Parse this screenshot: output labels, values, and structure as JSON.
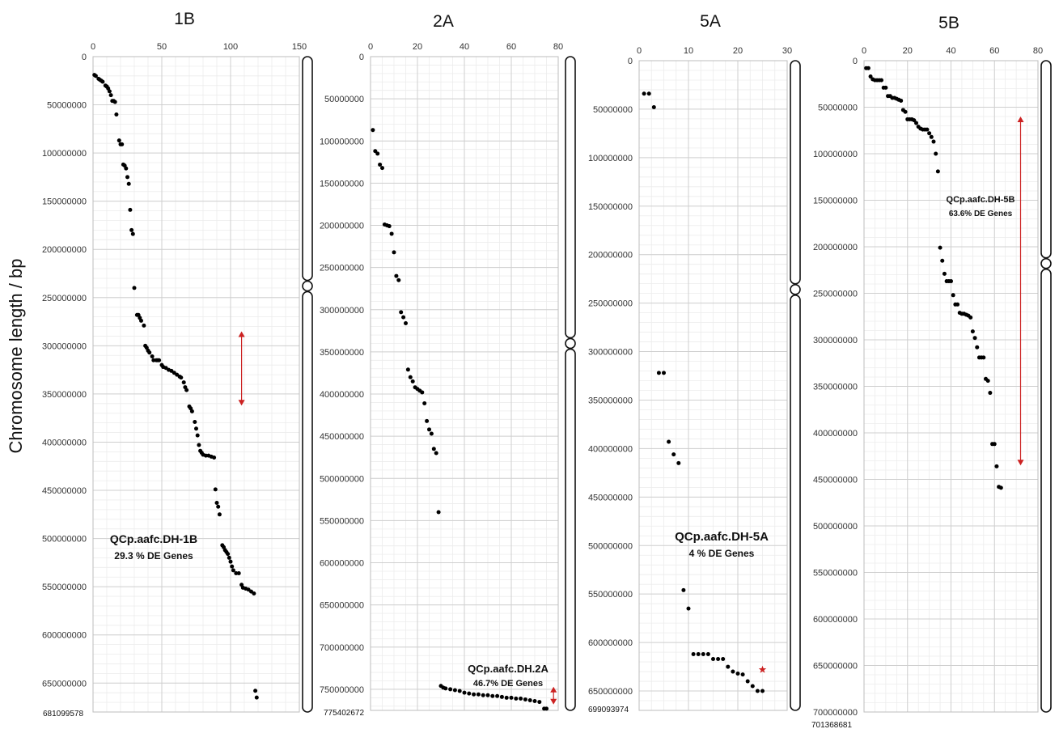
{
  "figure": {
    "ylabel": "Chromosome length / bp"
  },
  "chart_data": [
    {
      "type": "scatter",
      "title": "1B",
      "end_label": "681099578",
      "xlim": [
        0,
        150
      ],
      "xticks": [
        0,
        50,
        100,
        150
      ],
      "ylim": [
        0,
        680000000
      ],
      "yticks": [
        0,
        50000000,
        100000000,
        150000000,
        200000000,
        250000000,
        300000000,
        350000000,
        400000000,
        450000000,
        500000000,
        550000000,
        600000000,
        650000000
      ],
      "centromere": 238000000,
      "annotation": {
        "title": "QCp.aafc.DH-1B",
        "subtitle": "29.3 % DE Genes"
      },
      "marker": {
        "type": "double-arrow",
        "color": "#cc2222",
        "x": 108,
        "y0": 285000000,
        "y1": 362000000
      },
      "points": [
        [
          1,
          19000000
        ],
        [
          2,
          20000000
        ],
        [
          4,
          23000000
        ],
        [
          5,
          24000000
        ],
        [
          6,
          25000000
        ],
        [
          7,
          26000000
        ],
        [
          9,
          30000000
        ],
        [
          10,
          31000000
        ],
        [
          11,
          33000000
        ],
        [
          12,
          36000000
        ],
        [
          13,
          40000000
        ],
        [
          14,
          46000000
        ],
        [
          15,
          46000000
        ],
        [
          16,
          47000000
        ],
        [
          17,
          60000000
        ],
        [
          19,
          87000000
        ],
        [
          20,
          91000000
        ],
        [
          21,
          91000000
        ],
        [
          22,
          112000000
        ],
        [
          23,
          113000000
        ],
        [
          24,
          116000000
        ],
        [
          25,
          125000000
        ],
        [
          26,
          132000000
        ],
        [
          27,
          159000000
        ],
        [
          28,
          180000000
        ],
        [
          29,
          184000000
        ],
        [
          30,
          240000000
        ],
        [
          32,
          268000000
        ],
        [
          33,
          268000000
        ],
        [
          34,
          271000000
        ],
        [
          35,
          274000000
        ],
        [
          37,
          279000000
        ],
        [
          38,
          300000000
        ],
        [
          39,
          302000000
        ],
        [
          40,
          305000000
        ],
        [
          41,
          307000000
        ],
        [
          43,
          311000000
        ],
        [
          44,
          315000000
        ],
        [
          46,
          315000000
        ],
        [
          47,
          315000000
        ],
        [
          48,
          315000000
        ],
        [
          50,
          320000000
        ],
        [
          51,
          322000000
        ],
        [
          53,
          323000000
        ],
        [
          55,
          325000000
        ],
        [
          57,
          326000000
        ],
        [
          59,
          328000000
        ],
        [
          61,
          330000000
        ],
        [
          63,
          332000000
        ],
        [
          64,
          333000000
        ],
        [
          66,
          338000000
        ],
        [
          67,
          343000000
        ],
        [
          68,
          346000000
        ],
        [
          70,
          363000000
        ],
        [
          71,
          365000000
        ],
        [
          72,
          368000000
        ],
        [
          74,
          379000000
        ],
        [
          75,
          386000000
        ],
        [
          76,
          393000000
        ],
        [
          77,
          403000000
        ],
        [
          78,
          409000000
        ],
        [
          79,
          411000000
        ],
        [
          80,
          413000000
        ],
        [
          82,
          414000000
        ],
        [
          84,
          414000000
        ],
        [
          86,
          415000000
        ],
        [
          88,
          416000000
        ],
        [
          89,
          449000000
        ],
        [
          90,
          463000000
        ],
        [
          91,
          467000000
        ],
        [
          92,
          475000000
        ],
        [
          94,
          507000000
        ],
        [
          95,
          509000000
        ],
        [
          96,
          512000000
        ],
        [
          97,
          514000000
        ],
        [
          98,
          516000000
        ],
        [
          99,
          520000000
        ],
        [
          100,
          524000000
        ],
        [
          101,
          529000000
        ],
        [
          102,
          533000000
        ],
        [
          104,
          536000000
        ],
        [
          106,
          536000000
        ],
        [
          108,
          548000000
        ],
        [
          109,
          551000000
        ],
        [
          111,
          552000000
        ],
        [
          113,
          553000000
        ],
        [
          115,
          555000000
        ],
        [
          117,
          557000000
        ],
        [
          118,
          658000000
        ],
        [
          119,
          665000000
        ]
      ]
    },
    {
      "type": "scatter",
      "title": "2A",
      "end_label": "775402672",
      "xlim": [
        0,
        80
      ],
      "xticks": [
        0,
        20,
        40,
        60,
        80
      ],
      "ylim": [
        0,
        775000000
      ],
      "yticks": [
        0,
        50000000,
        100000000,
        150000000,
        200000000,
        250000000,
        300000000,
        350000000,
        400000000,
        450000000,
        500000000,
        550000000,
        600000000,
        650000000,
        700000000,
        750000000
      ],
      "centromere": 340000000,
      "annotation": {
        "title": "QCp.aafc.DH.2A",
        "subtitle": "46.7% DE Genes"
      },
      "marker": {
        "type": "double-arrow",
        "color": "#cc2222",
        "x": 78,
        "y0": 747000000,
        "y1": 768000000
      },
      "points": [
        [
          1,
          87000000
        ],
        [
          2,
          112000000
        ],
        [
          3,
          115000000
        ],
        [
          4,
          128000000
        ],
        [
          5,
          132000000
        ],
        [
          6,
          199000000
        ],
        [
          7,
          200000000
        ],
        [
          8,
          201000000
        ],
        [
          9,
          210000000
        ],
        [
          10,
          232000000
        ],
        [
          11,
          260000000
        ],
        [
          12,
          265000000
        ],
        [
          13,
          303000000
        ],
        [
          14,
          309000000
        ],
        [
          15,
          316000000
        ],
        [
          16,
          371000000
        ],
        [
          17,
          380000000
        ],
        [
          18,
          385000000
        ],
        [
          19,
          392000000
        ],
        [
          20,
          394000000
        ],
        [
          21,
          396000000
        ],
        [
          22,
          398000000
        ],
        [
          23,
          411000000
        ],
        [
          24,
          432000000
        ],
        [
          25,
          442000000
        ],
        [
          26,
          447000000
        ],
        [
          27,
          465000000
        ],
        [
          28,
          470000000
        ],
        [
          29,
          540000000
        ],
        [
          30,
          746000000
        ],
        [
          31,
          748000000
        ],
        [
          32,
          749000000
        ],
        [
          34,
          750000000
        ],
        [
          36,
          751000000
        ],
        [
          38,
          752000000
        ],
        [
          40,
          754000000
        ],
        [
          42,
          755000000
        ],
        [
          44,
          756000000
        ],
        [
          46,
          756000000
        ],
        [
          48,
          757000000
        ],
        [
          50,
          757000000
        ],
        [
          52,
          758000000
        ],
        [
          54,
          758000000
        ],
        [
          56,
          759000000
        ],
        [
          58,
          760000000
        ],
        [
          60,
          760000000
        ],
        [
          62,
          761000000
        ],
        [
          64,
          761000000
        ],
        [
          66,
          762000000
        ],
        [
          68,
          763000000
        ],
        [
          70,
          764000000
        ],
        [
          72,
          765000000
        ],
        [
          74,
          773000000
        ],
        [
          75,
          773000000
        ]
      ]
    },
    {
      "type": "scatter",
      "title": "5A",
      "end_label": "699093974",
      "xlim": [
        0,
        30
      ],
      "xticks": [
        0,
        10,
        20,
        30
      ],
      "ylim": [
        0,
        670000000
      ],
      "yticks": [
        0,
        50000000,
        100000000,
        150000000,
        200000000,
        250000000,
        300000000,
        350000000,
        400000000,
        450000000,
        500000000,
        550000000,
        600000000,
        650000000
      ],
      "centromere": 236000000,
      "annotation": {
        "title": "QCp.aafc.DH-5A",
        "subtitle": "4 % DE Genes"
      },
      "marker": {
        "type": "star",
        "color": "#cc2222",
        "x": 25,
        "y": 628000000
      },
      "points": [
        [
          1,
          34000000
        ],
        [
          2,
          34000000
        ],
        [
          3,
          48000000
        ],
        [
          4,
          322000000
        ],
        [
          5,
          322000000
        ],
        [
          6,
          393000000
        ],
        [
          7,
          406000000
        ],
        [
          8,
          415000000
        ],
        [
          9,
          546000000
        ],
        [
          10,
          565000000
        ],
        [
          11,
          612000000
        ],
        [
          12,
          612000000
        ],
        [
          13,
          612000000
        ],
        [
          14,
          612000000
        ],
        [
          15,
          617000000
        ],
        [
          16,
          617000000
        ],
        [
          17,
          617000000
        ],
        [
          18,
          625000000
        ],
        [
          19,
          630000000
        ],
        [
          20,
          632000000
        ],
        [
          21,
          633000000
        ],
        [
          22,
          640000000
        ],
        [
          23,
          645000000
        ],
        [
          24,
          650000000
        ],
        [
          25,
          650000000
        ]
      ]
    },
    {
      "type": "scatter",
      "title": "5B",
      "end_label": "701368681",
      "xlim": [
        0,
        80
      ],
      "xticks": [
        0,
        20,
        40,
        60,
        80
      ],
      "ylim": [
        0,
        700000000
      ],
      "yticks": [
        0,
        50000000,
        100000000,
        150000000,
        200000000,
        250000000,
        300000000,
        350000000,
        400000000,
        450000000,
        500000000,
        550000000,
        600000000,
        650000000,
        700000000
      ],
      "centromere": 218000000,
      "annotation": {
        "title": "QCp.aafc.DH-5B",
        "subtitle": "63.6% DE Genes"
      },
      "marker": {
        "type": "double-arrow",
        "color": "#cc2222",
        "x": 72,
        "y0": 60000000,
        "y1": 435000000
      },
      "points": [
        [
          1,
          8000000
        ],
        [
          2,
          8000000
        ],
        [
          3,
          17000000
        ],
        [
          4,
          20000000
        ],
        [
          5,
          21000000
        ],
        [
          6,
          21000000
        ],
        [
          7,
          21000000
        ],
        [
          8,
          21000000
        ],
        [
          9,
          29000000
        ],
        [
          10,
          29000000
        ],
        [
          11,
          38000000
        ],
        [
          12,
          38000000
        ],
        [
          13,
          40000000
        ],
        [
          14,
          40000000
        ],
        [
          15,
          41000000
        ],
        [
          16,
          42000000
        ],
        [
          17,
          43000000
        ],
        [
          18,
          53000000
        ],
        [
          19,
          55000000
        ],
        [
          20,
          63000000
        ],
        [
          21,
          63000000
        ],
        [
          22,
          63000000
        ],
        [
          23,
          64000000
        ],
        [
          24,
          67000000
        ],
        [
          25,
          71000000
        ],
        [
          26,
          73000000
        ],
        [
          27,
          74000000
        ],
        [
          28,
          74000000
        ],
        [
          29,
          74000000
        ],
        [
          30,
          78000000
        ],
        [
          31,
          82000000
        ],
        [
          32,
          87000000
        ],
        [
          33,
          100000000
        ],
        [
          34,
          119000000
        ],
        [
          35,
          201000000
        ],
        [
          36,
          215000000
        ],
        [
          37,
          229000000
        ],
        [
          38,
          237000000
        ],
        [
          39,
          237000000
        ],
        [
          40,
          237000000
        ],
        [
          41,
          252000000
        ],
        [
          42,
          262000000
        ],
        [
          43,
          262000000
        ],
        [
          44,
          271000000
        ],
        [
          45,
          272000000
        ],
        [
          46,
          272000000
        ],
        [
          47,
          273000000
        ],
        [
          48,
          274000000
        ],
        [
          49,
          276000000
        ],
        [
          50,
          291000000
        ],
        [
          51,
          298000000
        ],
        [
          52,
          308000000
        ],
        [
          53,
          319000000
        ],
        [
          54,
          319000000
        ],
        [
          55,
          319000000
        ],
        [
          56,
          342000000
        ],
        [
          57,
          344000000
        ],
        [
          58,
          357000000
        ],
        [
          59,
          412000000
        ],
        [
          60,
          412000000
        ],
        [
          61,
          436000000
        ],
        [
          62,
          458000000
        ],
        [
          63,
          459000000
        ]
      ]
    }
  ]
}
